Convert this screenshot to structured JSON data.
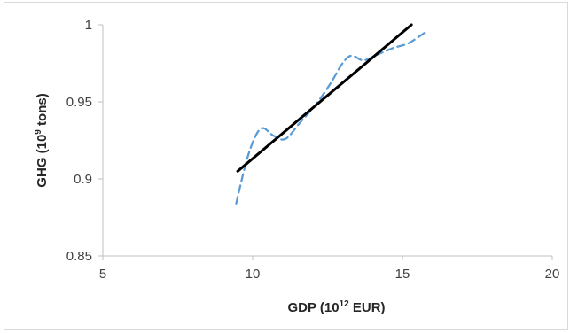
{
  "chart_data": {
    "type": "line",
    "title": "",
    "xlabel": {
      "prefix": "GDP (10",
      "sup": "12",
      "suffix": " EUR)"
    },
    "ylabel": {
      "prefix": "GHG (10",
      "sup": "9",
      "suffix": " tons)"
    },
    "xlim": [
      5,
      20
    ],
    "ylim": [
      0.85,
      1.0
    ],
    "x_ticks": [
      "5",
      "10",
      "15",
      "20"
    ],
    "y_ticks": [
      "0.85",
      "0.9",
      "0.95",
      "1"
    ],
    "grid": false,
    "series": [
      {
        "style": "dashed",
        "color": "#5b9bd5",
        "x": [
          9.45,
          9.8,
          10.1,
          10.35,
          10.7,
          11.1,
          11.6,
          12.1,
          12.6,
          13.0,
          13.3,
          13.7,
          14.2,
          14.7,
          15.2,
          15.75
        ],
        "y": [
          0.884,
          0.912,
          0.928,
          0.933,
          0.928,
          0.926,
          0.937,
          0.948,
          0.962,
          0.975,
          0.98,
          0.977,
          0.981,
          0.985,
          0.988,
          0.995
        ]
      },
      {
        "style": "solid",
        "color": "#000000",
        "x": [
          9.5,
          15.3
        ],
        "y": [
          0.905,
          1.0
        ]
      }
    ]
  }
}
